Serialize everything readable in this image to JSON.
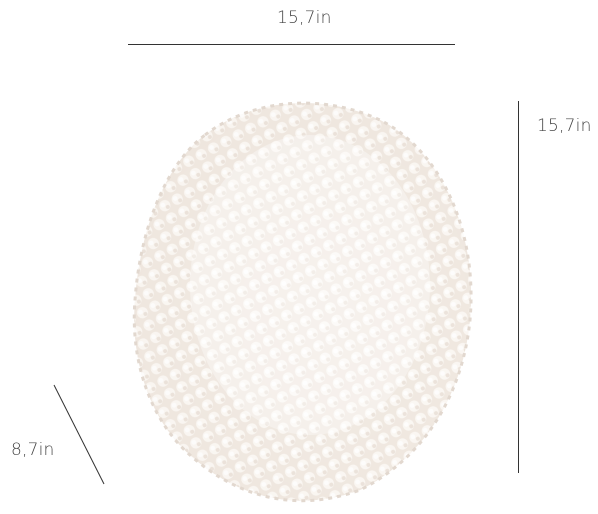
{
  "dimensions": {
    "width_label": "15,7in",
    "height_label": "15,7in",
    "depth_label": "8,7in"
  },
  "colors": {
    "background": "#ffffff",
    "dimension_line": "#333333",
    "label_text": "#444444",
    "lamp_base": "#f3ede8",
    "lamp_bead": "#fbf8f4",
    "lamp_shadow": "#d9d0c8"
  }
}
